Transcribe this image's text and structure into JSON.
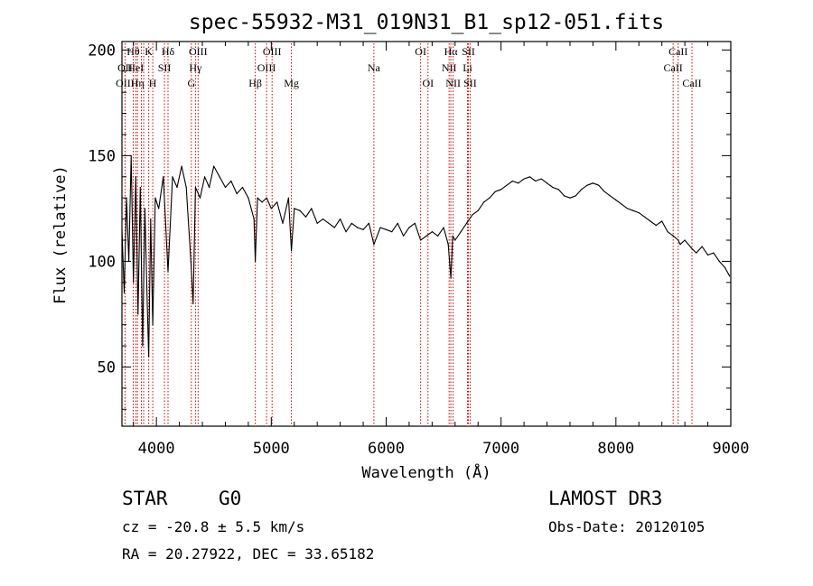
{
  "chart_data": {
    "type": "line",
    "title": "spec-55932-M31_019N31_B1_sp12-051.fits",
    "xlabel": "Wavelength (Å)",
    "ylabel": "Flux (relative)",
    "xlim": [
      3700,
      9000
    ],
    "ylim": [
      22,
      204
    ],
    "x_ticks": [
      4000,
      5000,
      6000,
      7000,
      8000,
      9000
    ],
    "y_ticks": [
      50,
      100,
      150,
      200
    ],
    "series": [
      {
        "name": "flux",
        "x": [
          3700,
          3720,
          3740,
          3760,
          3780,
          3800,
          3820,
          3840,
          3860,
          3880,
          3900,
          3920,
          3933,
          3950,
          3968,
          3990,
          4020,
          4060,
          4101,
          4140,
          4180,
          4220,
          4260,
          4300,
          4320,
          4340,
          4380,
          4420,
          4460,
          4500,
          4550,
          4600,
          4650,
          4700,
          4750,
          4800,
          4850,
          4861,
          4880,
          4920,
          4960,
          5000,
          5050,
          5100,
          5150,
          5175,
          5200,
          5250,
          5300,
          5350,
          5400,
          5450,
          5500,
          5550,
          5600,
          5650,
          5700,
          5750,
          5800,
          5850,
          5893,
          5950,
          6000,
          6050,
          6100,
          6150,
          6200,
          6250,
          6300,
          6350,
          6400,
          6450,
          6500,
          6540,
          6563,
          6580,
          6600,
          6650,
          6700,
          6750,
          6800,
          6850,
          6900,
          6950,
          7000,
          7050,
          7100,
          7150,
          7200,
          7250,
          7300,
          7350,
          7400,
          7450,
          7500,
          7550,
          7600,
          7650,
          7700,
          7750,
          7800,
          7850,
          7900,
          7950,
          8000,
          8050,
          8100,
          8150,
          8200,
          8250,
          8300,
          8350,
          8400,
          8450,
          8500,
          8542,
          8560,
          8600,
          8662,
          8700,
          8750,
          8800,
          8850,
          8900,
          8950,
          8990
        ],
        "y": [
          115,
          85,
          130,
          100,
          150,
          90,
          140,
          75,
          135,
          60,
          125,
          80,
          55,
          120,
          70,
          130,
          125,
          140,
          95,
          140,
          135,
          145,
          135,
          100,
          80,
          135,
          130,
          140,
          135,
          145,
          140,
          135,
          138,
          132,
          135,
          130,
          120,
          100,
          130,
          128,
          130,
          125,
          128,
          118,
          130,
          105,
          125,
          124,
          121,
          125,
          118,
          120,
          118,
          116,
          120,
          114,
          118,
          116,
          115,
          118,
          108,
          116,
          115,
          114,
          118,
          112,
          116,
          118,
          110,
          112,
          114,
          112,
          116,
          108,
          92,
          112,
          110,
          114,
          118,
          122,
          124,
          128,
          130,
          133,
          134,
          136,
          138,
          137,
          139,
          140,
          138,
          139,
          137,
          135,
          134,
          131,
          130,
          131,
          134,
          136,
          137,
          136,
          133,
          131,
          129,
          127,
          125,
          124,
          123,
          121,
          119,
          117,
          119,
          114,
          112,
          110,
          108,
          110,
          106,
          104,
          107,
          103,
          104,
          100,
          97,
          93
        ]
      }
    ],
    "line_labels": [
      {
        "label": "Hθ",
        "x": 3798,
        "row": 1
      },
      {
        "label": "OII",
        "x": 3727,
        "row": 2
      },
      {
        "label": "OIII",
        "x": 3727,
        "row": 3
      },
      {
        "label": "HeI",
        "x": 3820,
        "row": 2
      },
      {
        "label": "Hη",
        "x": 3835,
        "row": 3
      },
      {
        "label": "K",
        "x": 3933,
        "row": 1
      },
      {
        "label": "SII",
        "x": 4070,
        "row": 2
      },
      {
        "label": "H",
        "x": 3968,
        "row": 3
      },
      {
        "label": "Hδ",
        "x": 4101,
        "row": 1
      },
      {
        "label": "OIII",
        "x": 4363,
        "row": 1
      },
      {
        "label": "Hγ",
        "x": 4340,
        "row": 2
      },
      {
        "label": "G",
        "x": 4304,
        "row": 3
      },
      {
        "label": "Hβ",
        "x": 4861,
        "row": 3
      },
      {
        "label": "OIII",
        "x": 5007,
        "row": 1
      },
      {
        "label": "OIII",
        "x": 4959,
        "row": 2
      },
      {
        "label": "Mg",
        "x": 5175,
        "row": 3
      },
      {
        "label": "Na",
        "x": 5893,
        "row": 2
      },
      {
        "label": "OI",
        "x": 6300,
        "row": 1
      },
      {
        "label": "OI",
        "x": 6364,
        "row": 3
      },
      {
        "label": "Hα",
        "x": 6563,
        "row": 1
      },
      {
        "label": "SII",
        "x": 6716,
        "row": 1
      },
      {
        "label": "NII",
        "x": 6548,
        "row": 2
      },
      {
        "label": "Li",
        "x": 6708,
        "row": 2
      },
      {
        "label": "NII",
        "x": 6583,
        "row": 3
      },
      {
        "label": "SII",
        "x": 6731,
        "row": 3
      },
      {
        "label": "CaII",
        "x": 8542,
        "row": 1
      },
      {
        "label": "CaII",
        "x": 8498,
        "row": 2
      },
      {
        "label": "CaII",
        "x": 8662,
        "row": 3
      }
    ],
    "line_positions": [
      3727,
      3798,
      3820,
      3835,
      3869,
      3889,
      3933,
      3968,
      4070,
      4101,
      4304,
      4340,
      4363,
      4861,
      4959,
      5007,
      5175,
      5893,
      6300,
      6364,
      6548,
      6563,
      6583,
      6708,
      6716,
      6731,
      8498,
      8542,
      8662
    ]
  },
  "info": {
    "object_class": "STAR",
    "subclass": "G0",
    "redshift": "cz = -20.8 ± 5.5 km/s",
    "coords": "RA =  20.27922, DEC =  33.65182",
    "survey": "LAMOST DR3",
    "obs_date": "Obs-Date: 20120105"
  },
  "colors": {
    "line": "#000000",
    "marker": "#cc0000"
  }
}
